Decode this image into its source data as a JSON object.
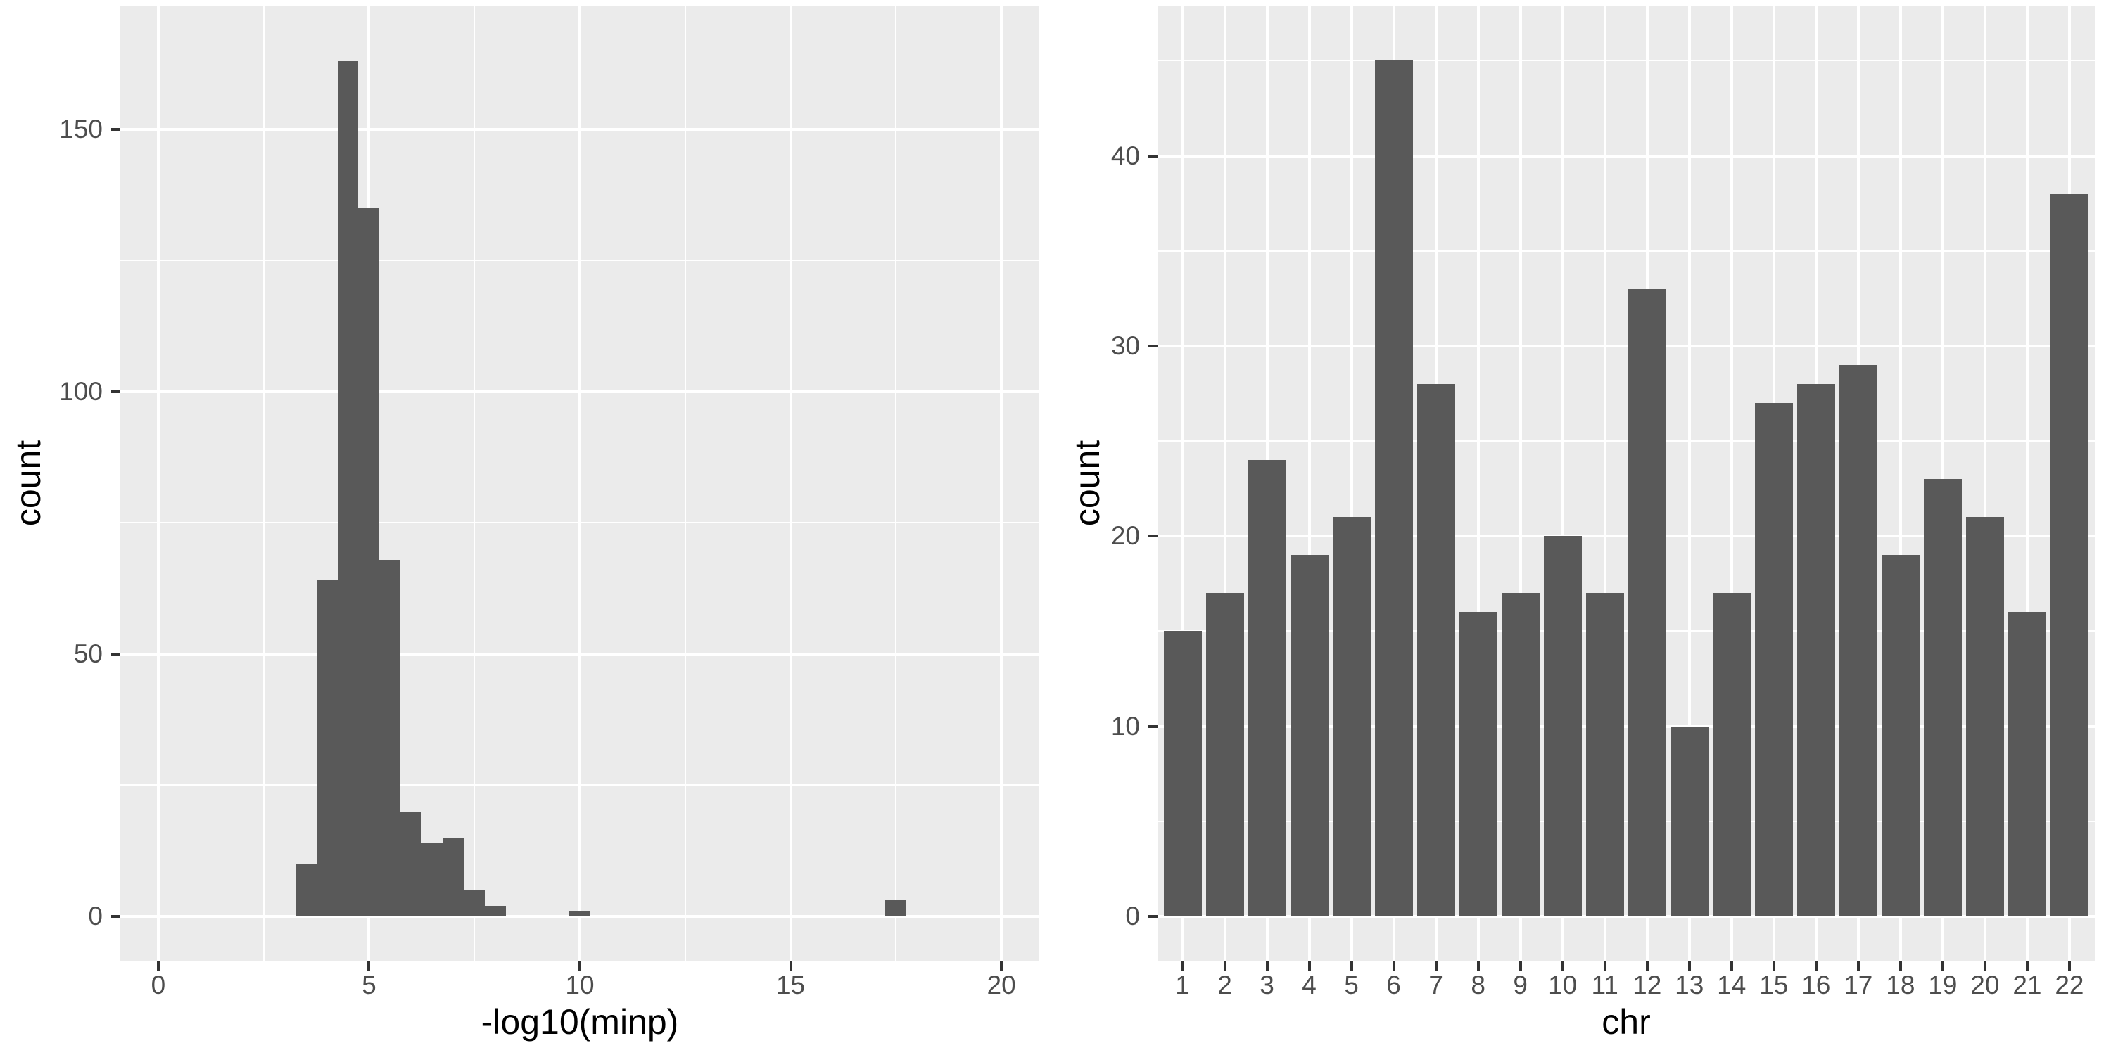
{
  "figure": {
    "background": "#FFFFFF",
    "panel_background": "#EBEBEB",
    "gridline_color": "#FFFFFF",
    "bar_color": "#595959",
    "tick_label_color": "#4D4D4D",
    "axis_title_color": "#000000",
    "tick_mark_color": "#333333"
  },
  "chart_data": [
    {
      "type": "histogram",
      "title": "",
      "xlabel": "-log10(minp)",
      "ylabel": "count",
      "binwidth": 0.5,
      "bins": [
        {
          "x0": 3.25,
          "count": 10
        },
        {
          "x0": 3.75,
          "count": 64
        },
        {
          "x0": 4.25,
          "count": 163
        },
        {
          "x0": 4.75,
          "count": 135
        },
        {
          "x0": 5.25,
          "count": 68
        },
        {
          "x0": 5.75,
          "count": 20
        },
        {
          "x0": 6.25,
          "count": 14
        },
        {
          "x0": 6.75,
          "count": 15
        },
        {
          "x0": 7.25,
          "count": 5
        },
        {
          "x0": 7.75,
          "count": 2
        },
        {
          "x0": 9.75,
          "count": 1
        },
        {
          "x0": 17.25,
          "count": 3
        }
      ],
      "x_ticks": [
        0,
        5,
        10,
        15,
        20
      ],
      "x_minor_ticks": [
        2.5,
        7.5,
        12.5,
        17.5
      ],
      "y_ticks": [
        0,
        50,
        100,
        150
      ],
      "y_minor_ticks": [
        25,
        75,
        125
      ],
      "xlim": [
        0,
        20
      ],
      "ylim": [
        0,
        173
      ],
      "grid": true,
      "legend": "none"
    },
    {
      "type": "bar",
      "title": "",
      "xlabel": "chr",
      "ylabel": "count",
      "categories": [
        "1",
        "2",
        "3",
        "4",
        "5",
        "6",
        "7",
        "8",
        "9",
        "10",
        "11",
        "12",
        "13",
        "14",
        "15",
        "16",
        "17",
        "18",
        "19",
        "20",
        "21",
        "22"
      ],
      "values": [
        15,
        17,
        24,
        19,
        21,
        45,
        28,
        16,
        17,
        20,
        17,
        33,
        10,
        17,
        27,
        28,
        29,
        19,
        23,
        21,
        16,
        38
      ],
      "y_ticks": [
        0,
        10,
        20,
        30,
        40
      ],
      "y_minor_ticks": [
        5,
        15,
        25,
        35,
        45
      ],
      "ylim": [
        0,
        47.9
      ],
      "grid": true,
      "legend": "none"
    }
  ]
}
